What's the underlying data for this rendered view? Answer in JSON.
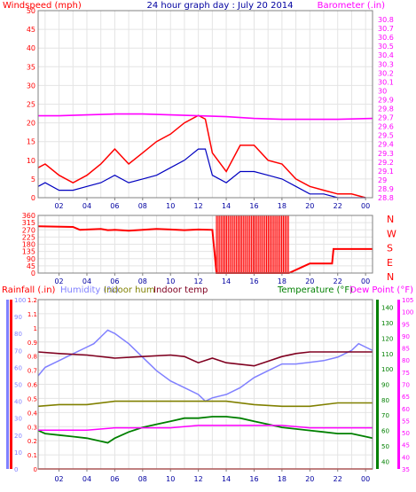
{
  "title": "24 hour graph day : July 20 2014",
  "colors": {
    "frame": "#808080",
    "wind": "#ff0000",
    "wind_avg": "#0000c0",
    "baro": "#ff00ff",
    "title": "#0000a0",
    "humidity": "#8080ff",
    "indoor_hum": "#808000",
    "indoor_temp": "#800020",
    "temperature": "#008000",
    "dewpoint": "#ff00ff",
    "rain": "#ff0000"
  },
  "chart_data": [
    {
      "type": "line",
      "id": "wind",
      "title": "24 hour graph day : July 20 2014",
      "ylabel_left": "Windspeed (mph)",
      "ylabel_right": "Barometer (.in)",
      "xticks": [
        "02",
        "04",
        "06",
        "08",
        "10",
        "12",
        "14",
        "16",
        "18",
        "20",
        "22",
        "00"
      ],
      "x_range_hours": [
        0.5,
        24.5
      ],
      "ylim_left": [
        0,
        50
      ],
      "yticks_left": [
        "0",
        "5",
        "10",
        "15",
        "20",
        "25",
        "30",
        "35",
        "40",
        "45",
        "50"
      ],
      "ylim_right": [
        28.8,
        30.9
      ],
      "yticks_right": [
        "28.8",
        "28.9",
        "29",
        "29.1",
        "29.2",
        "29.3",
        "29.4",
        "29.5",
        "29.6",
        "29.7",
        "29.8",
        "29.9",
        "30",
        "30.1",
        "30.2",
        "30.3",
        "30.4",
        "30.5",
        "30.6",
        "30.7",
        "30.8"
      ],
      "series": [
        {
          "name": "Windspeed (mph)",
          "x": [
            0.5,
            1,
            2,
            3,
            4,
            5,
            6,
            7,
            8,
            9,
            10,
            11,
            12,
            12.5,
            13,
            14,
            15,
            16,
            17,
            18,
            19,
            20,
            21,
            22,
            23,
            24
          ],
          "values": [
            8,
            9,
            6,
            4,
            6,
            9,
            13,
            9,
            12,
            15,
            17,
            20,
            22,
            21,
            12,
            7,
            14,
            14,
            10,
            9,
            5,
            3,
            2,
            1,
            1,
            0
          ]
        },
        {
          "name": "Average wind",
          "x": [
            0.5,
            1,
            2,
            3,
            4,
            5,
            6,
            7,
            8,
            9,
            10,
            11,
            12,
            12.5,
            13,
            14,
            15,
            16,
            17,
            18,
            19,
            20,
            21,
            22,
            23,
            24
          ],
          "values": [
            3,
            4,
            2,
            2,
            3,
            4,
            6,
            4,
            5,
            6,
            8,
            10,
            13,
            13,
            6,
            4,
            7,
            7,
            6,
            5,
            3,
            1,
            1,
            0,
            0,
            0
          ]
        },
        {
          "name": "Barometer (.in)",
          "x": [
            0.5,
            2,
            4,
            6,
            8,
            10,
            12,
            14,
            16,
            18,
            20,
            22,
            24.5
          ],
          "values": [
            29.72,
            29.72,
            29.73,
            29.74,
            29.74,
            29.73,
            29.72,
            29.71,
            29.69,
            29.68,
            29.68,
            29.68,
            29.69
          ]
        }
      ]
    },
    {
      "type": "line",
      "id": "direction",
      "ylim": [
        0,
        360
      ],
      "yticks": [
        "0",
        "45",
        "90",
        "135",
        "180",
        "225",
        "270",
        "315",
        "360"
      ],
      "compass_labels": [
        "N",
        "W",
        "S",
        "E",
        "N"
      ],
      "xticks": [
        "02",
        "04",
        "06",
        "08",
        "10",
        "12",
        "14",
        "16",
        "18",
        "20",
        "22",
        "00"
      ],
      "series": [
        {
          "name": "Wind direction",
          "x": [
            0.5,
            3,
            3.5,
            5,
            5.5,
            6,
            7,
            8,
            9,
            10,
            11,
            12,
            13,
            13.3,
            18.5,
            19.5,
            20,
            21,
            21.6,
            21.7,
            24.5
          ],
          "values": [
            292,
            288,
            270,
            275,
            268,
            270,
            265,
            270,
            275,
            272,
            268,
            272,
            270,
            0,
            0,
            40,
            60,
            60,
            60,
            150,
            150
          ]
        }
      ]
    },
    {
      "type": "line",
      "id": "climate",
      "labels_left": [
        "Rainfall (.in)",
        "Humidity (%)",
        "Indoor hum",
        "Indoor temp"
      ],
      "labels_right": [
        "Temperature (°F)",
        "Dew Point (°F)"
      ],
      "xticks": [
        "02",
        "04",
        "06",
        "08",
        "10",
        "12",
        "14",
        "16",
        "18",
        "20",
        "22",
        "00"
      ],
      "ylim_rain": [
        0,
        1.2
      ],
      "yticks_rain": [
        "0",
        "0.1",
        "0.2",
        "0.3",
        "0.4",
        "0.5",
        "0.6",
        "0.7",
        "0.8",
        "0.9",
        "1",
        "1.1",
        "1.2"
      ],
      "ylim_humidity": [
        0,
        100
      ],
      "yticks_humidity": [
        "0",
        "10",
        "20",
        "30",
        "40",
        "50",
        "60",
        "70",
        "80",
        "90",
        "100"
      ],
      "ylim_temperature": [
        35,
        145
      ],
      "yticks_temperature": [
        "40",
        "50",
        "60",
        "70",
        "80",
        "90",
        "100",
        "110",
        "120",
        "130",
        "140"
      ],
      "ylim_dewpoint": [
        35,
        105
      ],
      "yticks_dewpoint": [
        "35",
        "40",
        "45",
        "50",
        "55",
        "60",
        "65",
        "70",
        "75",
        "80",
        "85",
        "90",
        "95",
        "100",
        "105"
      ],
      "series": [
        {
          "name": "Humidity (%)",
          "x": [
            0.5,
            1,
            2,
            3,
            4,
            4.5,
            5,
            5.5,
            6,
            7,
            8,
            9,
            10,
            11,
            12,
            12.5,
            13,
            14,
            15,
            16,
            17,
            18,
            19,
            20,
            21,
            22,
            23,
            23.5,
            24,
            24.5
          ],
          "values": [
            55,
            60,
            64,
            68,
            72,
            74,
            78,
            82,
            80,
            74,
            66,
            58,
            52,
            48,
            44,
            40,
            42,
            44,
            48,
            54,
            58,
            62,
            62,
            63,
            64,
            66,
            70,
            74,
            72,
            70
          ]
        },
        {
          "name": "Indoor hum",
          "x": [
            0.5,
            2,
            4,
            6,
            8,
            10,
            12,
            14,
            16,
            18,
            20,
            22,
            24.5
          ],
          "values": [
            37,
            38,
            38,
            40,
            40,
            40,
            40,
            40,
            38,
            37,
            37,
            39,
            39
          ]
        },
        {
          "name": "Indoor temp",
          "x": [
            0.5,
            2,
            4,
            6,
            8,
            10,
            11,
            12,
            13,
            14,
            15,
            16,
            17,
            18,
            19,
            20,
            21,
            22,
            24.5
          ],
          "values": [
            111,
            110,
            109,
            107,
            108,
            109,
            108,
            104,
            107,
            104,
            103,
            102,
            105,
            108,
            110,
            111,
            111,
            111,
            111
          ]
        },
        {
          "name": "Temperature (°F)",
          "x": [
            0.5,
            1,
            2,
            3,
            4,
            5,
            5.5,
            6,
            7,
            8,
            9,
            10,
            11,
            12,
            13,
            14,
            15,
            16,
            17,
            18,
            19,
            20,
            21,
            22,
            23,
            24,
            24.5
          ],
          "values": [
            60,
            58,
            57,
            56,
            55,
            53,
            52,
            55,
            59,
            62,
            64,
            66,
            68,
            68,
            69,
            69,
            68,
            66,
            64,
            62,
            61,
            60,
            59,
            58,
            58,
            56,
            55
          ]
        },
        {
          "name": "Dew Point (°F)",
          "x": [
            0.5,
            2,
            4,
            6,
            8,
            10,
            12,
            14,
            16,
            18,
            20,
            22,
            24,
            24.5
          ],
          "values": [
            51,
            51,
            51,
            52,
            52,
            52,
            53,
            53,
            53,
            53,
            52,
            52,
            52,
            52
          ]
        },
        {
          "name": "Rainfall (.in)",
          "x": [
            0.5,
            24.5
          ],
          "values": [
            0,
            0
          ]
        }
      ]
    }
  ]
}
